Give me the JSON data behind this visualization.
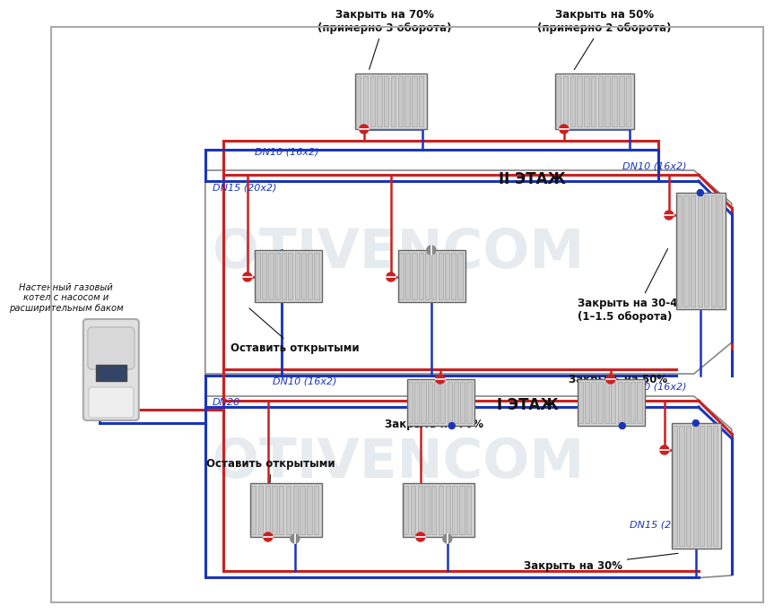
{
  "red_pipe": "#cc2020",
  "blue_pipe": "#1a35bb",
  "text_color_blue": "#1a35bb",
  "text_color_dark": "#111111",
  "text_bold_dark": "#000000",
  "title_left": "Настенный газовый\nкотел с насосом и\nрасширительным баком",
  "label_floor2": "II ЭТАЖ",
  "label_floor1": "I ЭТАЖ",
  "ann_top_mid": "Закрыть на 70%\n(примерно 3 оборота)",
  "ann_top_right": "Закрыть на 50%\n(примерно 2 оборота)",
  "ann_floor2_right1": "Закрыть на 30-40%\n(1–1.5 оборота)",
  "ann_floor2_right2": "Закрыть на 50%",
  "ann_floor1_mid": "Закрыть на 70%",
  "ann_floor1_right": "Закрыть на 30%",
  "ann_floor2_left": "Оставить открытыми",
  "ann_floor1_left": "Оставить открытыми",
  "dn_top_left": "DN10 (16x2)",
  "dn_top_right": "DN10 (16x2)",
  "dn_floor2_left": "DN15 (20x2)",
  "dn_floor2_mid": "DN10 (16x2)",
  "dn_floor2_right": "DN10 (16x2)",
  "dn_floor1_left": "DN20",
  "dn_floor1_right": "DN15 (20x2)",
  "watermark": "OTIVENCOM"
}
